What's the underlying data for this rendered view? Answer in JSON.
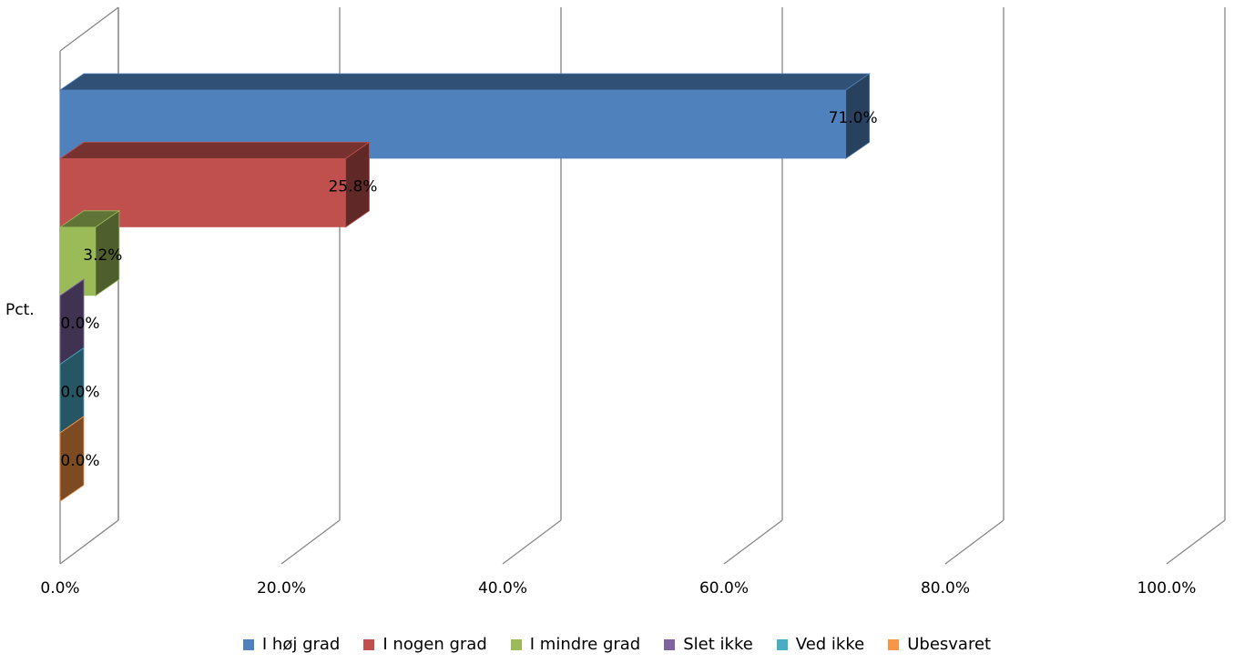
{
  "chart_data": {
    "type": "bar",
    "orientation": "horizontal",
    "style": "3d-clustered",
    "categories": [
      "Pct."
    ],
    "series": [
      {
        "name": "I høj grad",
        "values": [
          71.0
        ],
        "label": "71.0%",
        "color": "#4F81BD"
      },
      {
        "name": "I nogen grad",
        "values": [
          25.8
        ],
        "label": "25.8%",
        "color": "#C0504D"
      },
      {
        "name": "I mindre grad",
        "values": [
          3.2
        ],
        "label": "3.2%",
        "color": "#9BBB59"
      },
      {
        "name": "Slet ikke",
        "values": [
          0.0
        ],
        "label": "0.0%",
        "color": "#8064A2"
      },
      {
        "name": "Ved ikke",
        "values": [
          0.0
        ],
        "label": "0.0%",
        "color": "#4BACC6"
      },
      {
        "name": "Ubesvaret",
        "values": [
          0.0
        ],
        "label": "0.0%",
        "color": "#F79646"
      }
    ],
    "xlim": [
      0,
      100
    ],
    "x_ticks": [
      "0.0%",
      "20.0%",
      "40.0%",
      "60.0%",
      "80.0%",
      "100.0%"
    ],
    "grid": true,
    "legend_position": "bottom"
  }
}
